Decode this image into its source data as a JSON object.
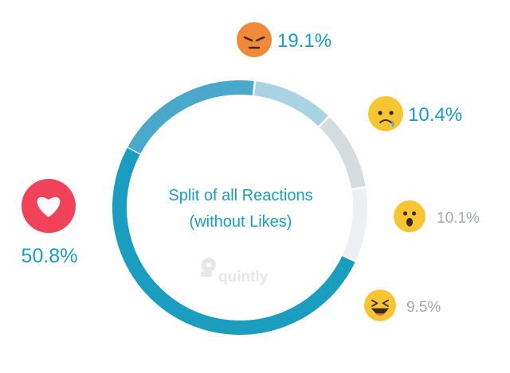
{
  "chart_data": {
    "type": "pie",
    "title": "Split of all Reactions",
    "subtitle": "(without Likes)",
    "watermark": "quintly",
    "slices": [
      {
        "icon": "heart-love-icon",
        "value": 50.8,
        "label": "50.8%",
        "color": "#1b9dbf",
        "icon_color": "#f0435a",
        "label_color": "#1b9dbf"
      },
      {
        "icon": "angry-face-icon",
        "value": 19.1,
        "label": "19.1%",
        "color": "#4aa9cb",
        "icon_color": "#f08a3a",
        "label_color": "#1b9dbf"
      },
      {
        "icon": "sad-face-icon",
        "value": 10.4,
        "label": "10.4%",
        "color": "#a9d3e3",
        "icon_color": "#f7c532",
        "label_color": "#1b9dbf"
      },
      {
        "icon": "wow-face-icon",
        "value": 10.1,
        "label": "10.1%",
        "color": "#d5dce0",
        "icon_color": "#f7c532",
        "label_color": "#a3a8ab"
      },
      {
        "icon": "haha-face-icon",
        "value": 9.5,
        "label": "9.5%",
        "color": "#edf0f2",
        "icon_color": "#f7c532",
        "label_color": "#a3a8ab"
      }
    ]
  }
}
